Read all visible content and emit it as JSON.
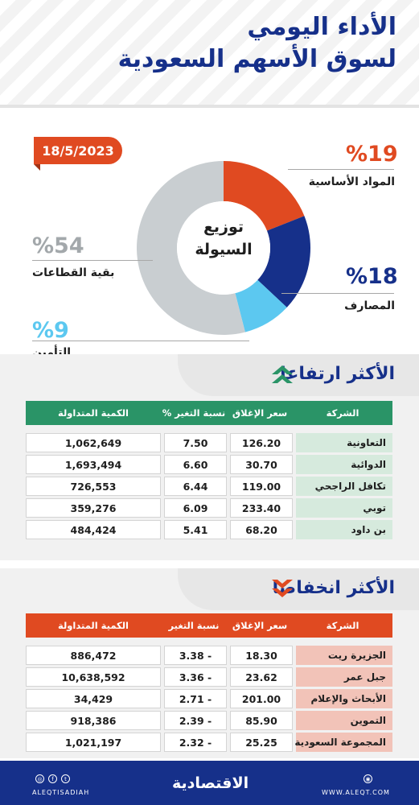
{
  "header": {
    "title_line1": "الأداء اليومي",
    "title_line2": "لسوق الأسهم السعودية",
    "date": "18/5/2023"
  },
  "colors": {
    "navy": "#16308a",
    "orange": "#e04a21",
    "green": "#2a9467",
    "gray": "#c9ced1",
    "sky": "#5cc8f0",
    "mint": "#d6eadd",
    "rose": "#f2c3b8"
  },
  "chart_data": {
    "type": "pie",
    "title": "توزيع السيولة",
    "title_line1": "توزيع",
    "title_line2": "السيولة",
    "slices": [
      {
        "label": "المواد الأساسية",
        "value": 19,
        "display": "%19",
        "color": "#e04a21"
      },
      {
        "label": "المصارف",
        "value": 18,
        "display": "%18",
        "color": "#16308a"
      },
      {
        "label": "التأمين",
        "value": 9,
        "display": "%9",
        "color": "#5cc8f0"
      },
      {
        "label": "بقية القطاعات",
        "value": 54,
        "display": "%54",
        "color": "#c9ced1"
      }
    ]
  },
  "gainers": {
    "title": "الأكثر ارتفاعا",
    "headers": [
      "الشركة",
      "سعر الإغلاق",
      "نسبة التغير %",
      "الكمية المتداولة"
    ],
    "rows": [
      {
        "name": "التعاونية",
        "close": "126.20",
        "change": "7.50",
        "volume": "1,062,649"
      },
      {
        "name": "الدوائية",
        "close": "30.70",
        "change": "6.60",
        "volume": "1,693,494"
      },
      {
        "name": "تكافل الراجحي",
        "close": "119.00",
        "change": "6.44",
        "volume": "726,553"
      },
      {
        "name": "توبي",
        "close": "233.40",
        "change": "6.09",
        "volume": "359,276"
      },
      {
        "name": "بن داود",
        "close": "68.20",
        "change": "5.41",
        "volume": "484,424"
      }
    ]
  },
  "losers": {
    "title": "الأكثر انخفاضا",
    "headers": [
      "الشركة",
      "سعر الإغلاق",
      "نسبة التغير",
      "الكمية المتداولة"
    ],
    "rows": [
      {
        "name": "الجزيرة ريت",
        "close": "18.30",
        "change": "- 3.38",
        "volume": "886,472"
      },
      {
        "name": "جبل عمر",
        "close": "23.62",
        "change": "- 3.36",
        "volume": "10,638,592"
      },
      {
        "name": "الأبحاث والإعلام",
        "close": "201.00",
        "change": "- 2.71",
        "volume": "34,429"
      },
      {
        "name": "التموين",
        "close": "85.90",
        "change": "- 2.39",
        "volume": "918,386"
      },
      {
        "name": "المجموعة السعودية",
        "close": "25.25",
        "change": "- 2.32",
        "volume": "1,021,197"
      }
    ]
  },
  "footer": {
    "handle": "ALEQTISADIAH",
    "website": "WWW.ALEQT.COM",
    "logo": "الاقتصادية"
  }
}
